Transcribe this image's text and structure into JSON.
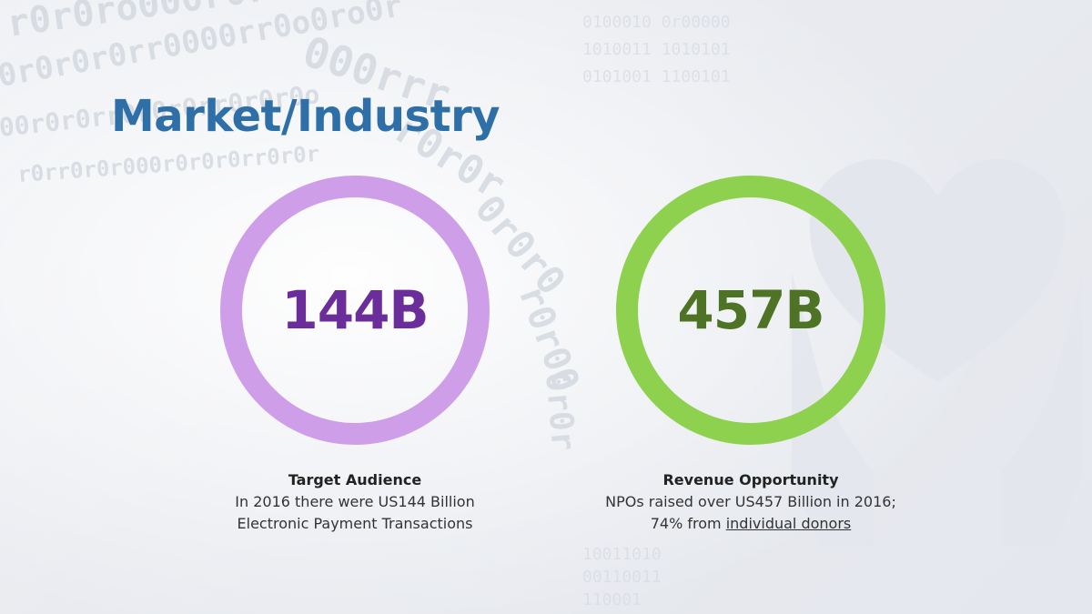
{
  "title": "Market/Industry",
  "colors": {
    "title": "#2f6fa8",
    "ring_left": "#cf9ee8",
    "value_left": "#6b2d99",
    "ring_right": "#8ed14f",
    "value_right": "#4f7325"
  },
  "background_icon": "heart-in-hands-icon",
  "stats": [
    {
      "value": "144B",
      "heading": "Target Audience",
      "line1": "In 2016 there were US144 Billion",
      "line2": "Electronic Payment Transactions"
    },
    {
      "value": "457B",
      "heading": "Revenue Opportunity",
      "line1": "NPOs raised over US457 Billion in 2016;",
      "line2_prefix": "74% from ",
      "line2_link": "individual donors"
    }
  ]
}
